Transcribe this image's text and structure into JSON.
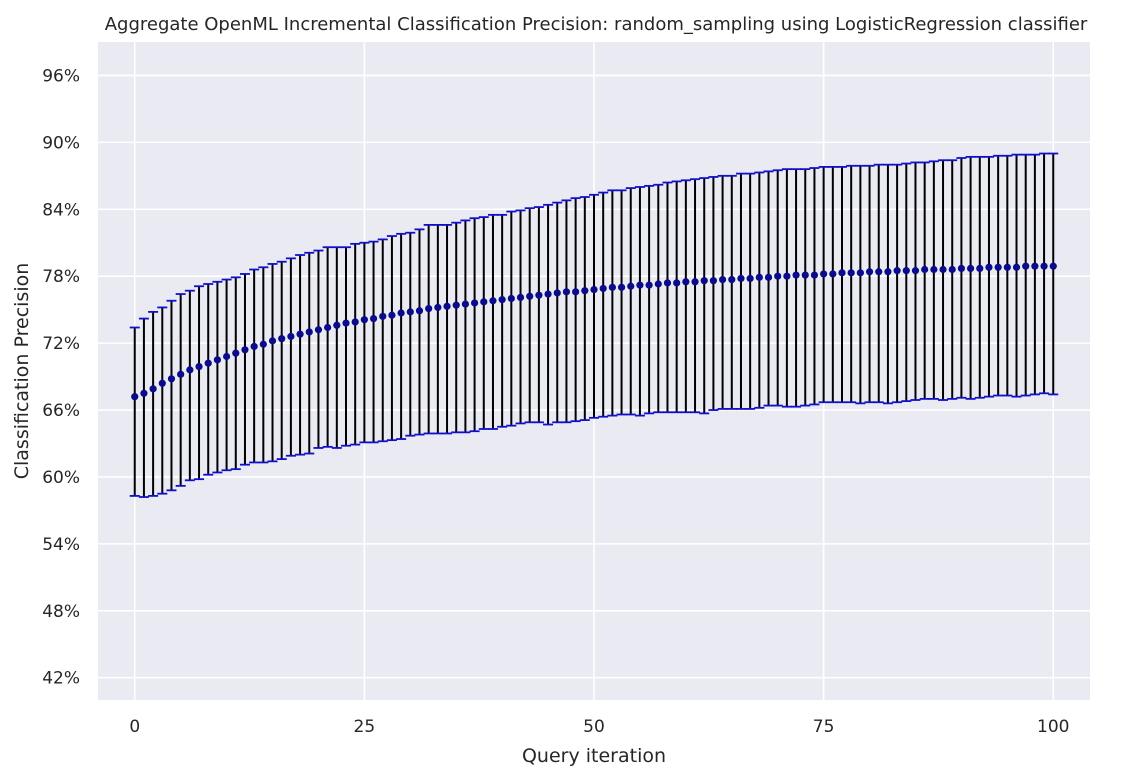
{
  "chart_data": {
    "type": "errorbar",
    "title": "Aggregate OpenML Incremental Classification Precision: random_sampling using LogisticRegression classifier",
    "xlabel": "Query iteration",
    "ylabel": "Classification Precision",
    "xlim": [
      -4,
      104
    ],
    "ylim": [
      0.4,
      0.99
    ],
    "xticks": [
      0,
      25,
      50,
      75,
      100
    ],
    "xtick_labels": [
      "0",
      "25",
      "50",
      "75",
      "100"
    ],
    "yticks": [
      0.42,
      0.48,
      0.54,
      0.6,
      0.66,
      0.72,
      0.78,
      0.84,
      0.9,
      0.96
    ],
    "ytick_labels": [
      "42%",
      "48%",
      "54%",
      "60%",
      "66%",
      "72%",
      "78%",
      "84%",
      "90%",
      "96%"
    ],
    "grid": true,
    "colors": {
      "background": "#eaeaf2",
      "grid": "#ffffff",
      "marker": "#0a0a8c",
      "errorbar": "#000000",
      "cap": "#1010cc",
      "text": "#262626"
    },
    "x": [
      0,
      1,
      2,
      3,
      4,
      5,
      6,
      7,
      8,
      9,
      10,
      11,
      12,
      13,
      14,
      15,
      16,
      17,
      18,
      19,
      20,
      21,
      22,
      23,
      24,
      25,
      26,
      27,
      28,
      29,
      30,
      31,
      32,
      33,
      34,
      35,
      36,
      37,
      38,
      39,
      40,
      41,
      42,
      43,
      44,
      45,
      46,
      47,
      48,
      49,
      50,
      51,
      52,
      53,
      54,
      55,
      56,
      57,
      58,
      59,
      60,
      61,
      62,
      63,
      64,
      65,
      66,
      67,
      68,
      69,
      70,
      71,
      72,
      73,
      74,
      75,
      76,
      77,
      78,
      79,
      80,
      81,
      82,
      83,
      84,
      85,
      86,
      87,
      88,
      89,
      90,
      91,
      92,
      93,
      94,
      95,
      96,
      97,
      98,
      99,
      100
    ],
    "mean": [
      0.672,
      0.675,
      0.679,
      0.684,
      0.688,
      0.692,
      0.696,
      0.699,
      0.702,
      0.705,
      0.708,
      0.711,
      0.714,
      0.717,
      0.719,
      0.722,
      0.724,
      0.726,
      0.728,
      0.73,
      0.732,
      0.734,
      0.736,
      0.738,
      0.739,
      0.741,
      0.742,
      0.744,
      0.745,
      0.747,
      0.748,
      0.749,
      0.751,
      0.752,
      0.753,
      0.754,
      0.755,
      0.756,
      0.757,
      0.758,
      0.759,
      0.76,
      0.761,
      0.762,
      0.763,
      0.764,
      0.765,
      0.766,
      0.766,
      0.767,
      0.768,
      0.769,
      0.77,
      0.77,
      0.771,
      0.772,
      0.772,
      0.773,
      0.774,
      0.774,
      0.775,
      0.775,
      0.776,
      0.776,
      0.777,
      0.777,
      0.778,
      0.778,
      0.779,
      0.779,
      0.78,
      0.78,
      0.781,
      0.781,
      0.781,
      0.782,
      0.782,
      0.783,
      0.783,
      0.783,
      0.784,
      0.784,
      0.784,
      0.785,
      0.785,
      0.785,
      0.786,
      0.786,
      0.786,
      0.786,
      0.787,
      0.787,
      0.787,
      0.788,
      0.788,
      0.788,
      0.788,
      0.789,
      0.789,
      0.789,
      0.789
    ],
    "upper": [
      0.734,
      0.742,
      0.748,
      0.752,
      0.758,
      0.764,
      0.767,
      0.771,
      0.773,
      0.775,
      0.777,
      0.779,
      0.782,
      0.786,
      0.788,
      0.791,
      0.793,
      0.796,
      0.799,
      0.801,
      0.803,
      0.806,
      0.806,
      0.806,
      0.809,
      0.81,
      0.811,
      0.813,
      0.816,
      0.818,
      0.819,
      0.822,
      0.826,
      0.826,
      0.826,
      0.828,
      0.83,
      0.832,
      0.833,
      0.835,
      0.835,
      0.838,
      0.839,
      0.841,
      0.842,
      0.844,
      0.846,
      0.848,
      0.85,
      0.851,
      0.853,
      0.855,
      0.857,
      0.857,
      0.859,
      0.86,
      0.861,
      0.862,
      0.864,
      0.865,
      0.866,
      0.867,
      0.868,
      0.869,
      0.87,
      0.87,
      0.872,
      0.872,
      0.873,
      0.874,
      0.875,
      0.876,
      0.876,
      0.876,
      0.877,
      0.878,
      0.878,
      0.878,
      0.879,
      0.879,
      0.879,
      0.88,
      0.88,
      0.88,
      0.881,
      0.882,
      0.882,
      0.883,
      0.884,
      0.884,
      0.886,
      0.887,
      0.887,
      0.887,
      0.888,
      0.888,
      0.889,
      0.889,
      0.889,
      0.89,
      0.89
    ],
    "lower": [
      0.583,
      0.582,
      0.583,
      0.585,
      0.588,
      0.592,
      0.597,
      0.598,
      0.602,
      0.604,
      0.606,
      0.607,
      0.611,
      0.613,
      0.613,
      0.614,
      0.616,
      0.619,
      0.62,
      0.621,
      0.626,
      0.627,
      0.626,
      0.628,
      0.629,
      0.631,
      0.631,
      0.632,
      0.633,
      0.634,
      0.637,
      0.638,
      0.639,
      0.639,
      0.639,
      0.64,
      0.64,
      0.641,
      0.643,
      0.643,
      0.645,
      0.646,
      0.648,
      0.649,
      0.649,
      0.647,
      0.649,
      0.649,
      0.65,
      0.651,
      0.653,
      0.654,
      0.655,
      0.656,
      0.656,
      0.655,
      0.657,
      0.658,
      0.658,
      0.658,
      0.658,
      0.658,
      0.657,
      0.66,
      0.661,
      0.661,
      0.661,
      0.661,
      0.662,
      0.664,
      0.664,
      0.663,
      0.663,
      0.664,
      0.665,
      0.667,
      0.667,
      0.667,
      0.667,
      0.666,
      0.667,
      0.667,
      0.666,
      0.667,
      0.668,
      0.669,
      0.67,
      0.67,
      0.669,
      0.67,
      0.671,
      0.67,
      0.671,
      0.672,
      0.673,
      0.673,
      0.672,
      0.673,
      0.674,
      0.675,
      0.674
    ]
  }
}
